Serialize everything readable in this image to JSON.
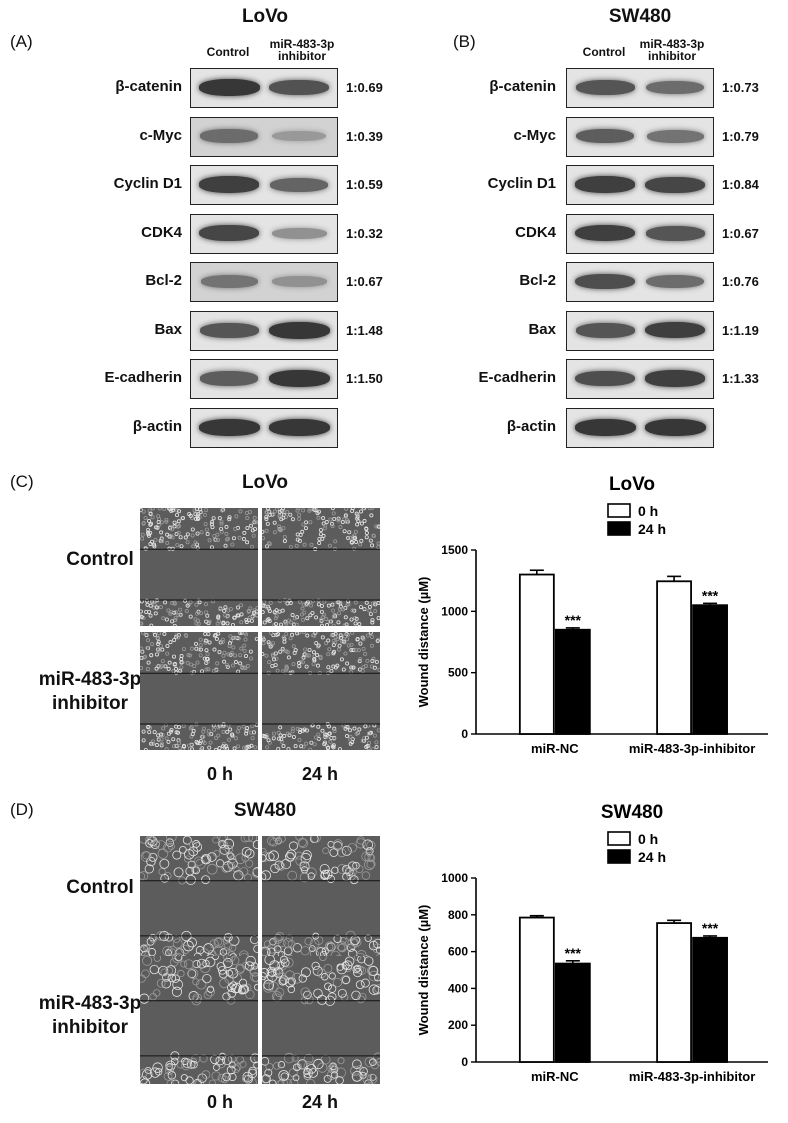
{
  "panels": {
    "A": {
      "letter": "(A)",
      "cell_line": "LoVo",
      "columns": [
        "Control",
        "miR-483-3p\ninhibitor"
      ],
      "rows": [
        {
          "label": "β-catenin",
          "ratio": "1:0.69",
          "bands": [
            0.9,
            0.72
          ]
        },
        {
          "label": "c-Myc",
          "ratio": "1:0.39",
          "bands": [
            0.55,
            0.25
          ]
        },
        {
          "label": "Cyclin D1",
          "ratio": "1:0.59",
          "bands": [
            0.85,
            0.6
          ]
        },
        {
          "label": "CDK4",
          "ratio": "1:0.32",
          "bands": [
            0.8,
            0.3
          ]
        },
        {
          "label": "Bcl-2",
          "ratio": "1:0.67",
          "bands": [
            0.5,
            0.3
          ]
        },
        {
          "label": "Bax",
          "ratio": "1:1.48",
          "bands": [
            0.7,
            0.9
          ]
        },
        {
          "label": "E-cadherin",
          "ratio": "1:1.50",
          "bands": [
            0.65,
            0.9
          ]
        },
        {
          "label": "β-actin",
          "ratio": "",
          "bands": [
            0.9,
            0.9
          ]
        }
      ]
    },
    "B": {
      "letter": "(B)",
      "cell_line": "SW480",
      "columns": [
        "Control",
        "miR-483-3p\ninhibitor"
      ],
      "rows": [
        {
          "label": "β-catenin",
          "ratio": "1:0.73",
          "bands": [
            0.7,
            0.55
          ]
        },
        {
          "label": "c-Myc",
          "ratio": "1:0.79",
          "bands": [
            0.65,
            0.5
          ]
        },
        {
          "label": "Cyclin D1",
          "ratio": "1:0.84",
          "bands": [
            0.85,
            0.8
          ]
        },
        {
          "label": "CDK4",
          "ratio": "1:0.67",
          "bands": [
            0.85,
            0.7
          ]
        },
        {
          "label": "Bcl-2",
          "ratio": "1:0.76",
          "bands": [
            0.75,
            0.55
          ]
        },
        {
          "label": "Bax",
          "ratio": "1:1.19",
          "bands": [
            0.7,
            0.85
          ]
        },
        {
          "label": "E-cadherin",
          "ratio": "1:1.33",
          "bands": [
            0.75,
            0.85
          ]
        },
        {
          "label": "β-actin",
          "ratio": "",
          "bands": [
            0.9,
            0.9
          ]
        }
      ]
    },
    "C": {
      "letter": "(C)",
      "cell_line": "LoVo",
      "chart_title": "LoVo",
      "row_labels": [
        "Control",
        "miR-483-3p\ninhibitor"
      ],
      "time_labels": [
        "0 h",
        "24 h"
      ]
    },
    "D": {
      "letter": "(D)",
      "cell_line": "SW480",
      "chart_title": "SW480",
      "row_labels": [
        "Control",
        "miR-483-3p\ninhibitor"
      ],
      "time_labels": [
        "0 h",
        "24 h"
      ]
    }
  },
  "chart_data": [
    {
      "type": "bar",
      "title": "LoVo",
      "categories": [
        "miR-NC",
        "miR-483-3p-inhibitor"
      ],
      "series": [
        {
          "name": "0 h",
          "values": [
            1300,
            1245
          ],
          "errors": [
            35,
            40
          ],
          "color": "#ffffff"
        },
        {
          "name": "24 h",
          "values": [
            850,
            1050
          ],
          "errors": [
            15,
            15
          ],
          "color": "#000000"
        }
      ],
      "significance": [
        "***",
        "***"
      ],
      "xlabel": "",
      "ylabel": "Wound distance (µM)",
      "ylim": [
        0,
        1500
      ],
      "yticks": [
        0,
        500,
        1000,
        1500
      ],
      "grid": false,
      "legend": "top-right"
    },
    {
      "type": "bar",
      "title": "SW480",
      "categories": [
        "miR-NC",
        "miR-483-3p-inhibitor"
      ],
      "series": [
        {
          "name": "0 h",
          "values": [
            785,
            755
          ],
          "errors": [
            10,
            15
          ],
          "color": "#ffffff"
        },
        {
          "name": "24 h",
          "values": [
            535,
            675
          ],
          "errors": [
            15,
            10
          ],
          "color": "#000000"
        }
      ],
      "significance": [
        "***",
        "***"
      ],
      "xlabel": "",
      "ylabel": "Wound distance (µM)",
      "ylim": [
        0,
        1000
      ],
      "yticks": [
        0,
        200,
        400,
        600,
        800,
        1000
      ],
      "grid": false,
      "legend": "top-right"
    }
  ]
}
